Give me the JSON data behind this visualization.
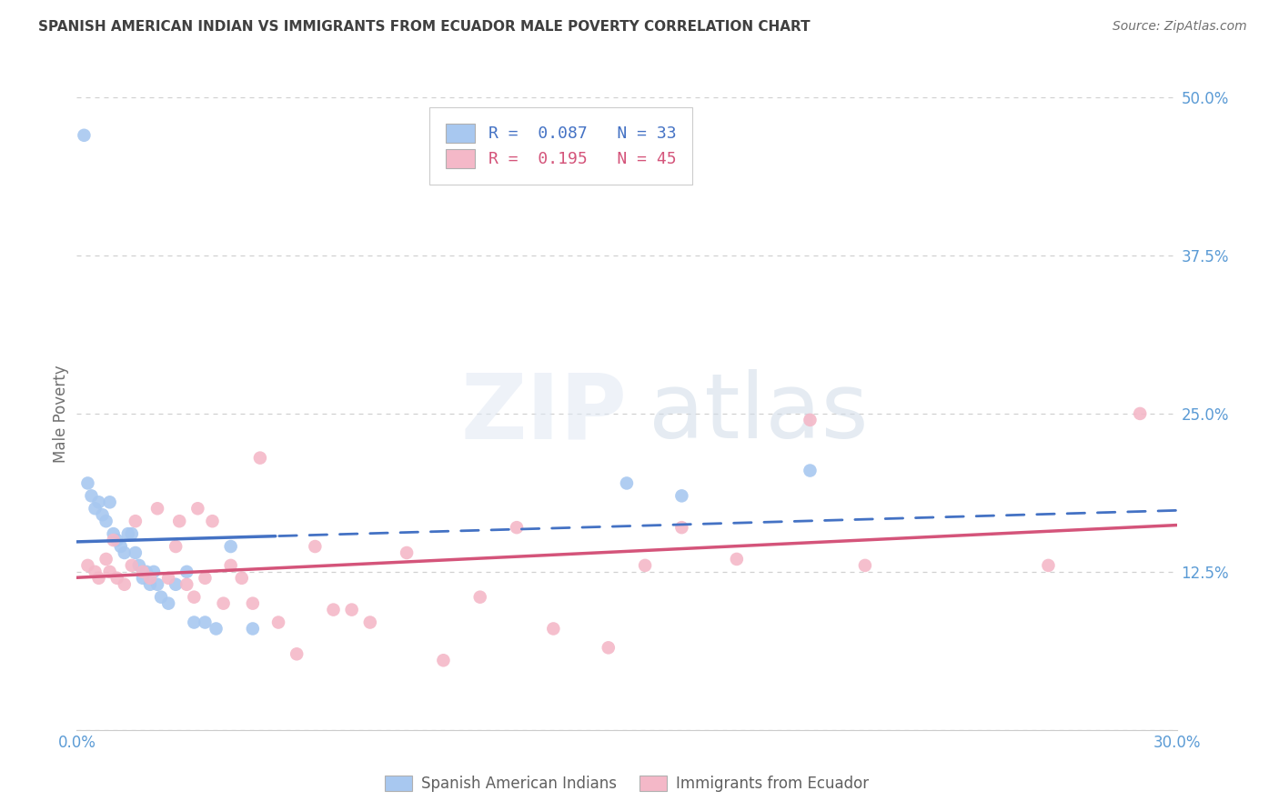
{
  "title": "SPANISH AMERICAN INDIAN VS IMMIGRANTS FROM ECUADOR MALE POVERTY CORRELATION CHART",
  "source": "Source: ZipAtlas.com",
  "ylabel_label": "Male Poverty",
  "xlim": [
    0.0,
    0.3
  ],
  "ylim": [
    0.0,
    0.5
  ],
  "ytick_positions": [
    0.125,
    0.25,
    0.375,
    0.5
  ],
  "ytick_labels": [
    "12.5%",
    "25.0%",
    "37.5%",
    "50.0%"
  ],
  "xtick_positions": [
    0.0,
    0.05,
    0.1,
    0.15,
    0.2,
    0.25,
    0.3
  ],
  "xtick_labels": [
    "0.0%",
    "",
    "",
    "",
    "",
    "",
    "30.0%"
  ],
  "legend_line1": "R =  0.087   N = 33",
  "legend_line2": "R =  0.195   N = 45",
  "series1_label": "Spanish American Indians",
  "series2_label": "Immigrants from Ecuador",
  "series1_color": "#a8c8f0",
  "series2_color": "#f4b8c8",
  "trendline1_color": "#4472c4",
  "trendline2_color": "#d4547a",
  "axis_color": "#5b9bd5",
  "background_color": "#ffffff",
  "grid_color": "#d0d0d0",
  "title_color": "#404040",
  "source_color": "#707070",
  "ylabel_color": "#707070",
  "trendline1_solid_end": 0.055,
  "blue_x": [
    0.002,
    0.003,
    0.004,
    0.005,
    0.006,
    0.007,
    0.008,
    0.009,
    0.01,
    0.011,
    0.012,
    0.013,
    0.014,
    0.015,
    0.016,
    0.017,
    0.018,
    0.019,
    0.02,
    0.021,
    0.022,
    0.023,
    0.025,
    0.027,
    0.03,
    0.032,
    0.035,
    0.038,
    0.042,
    0.048,
    0.15,
    0.165,
    0.2
  ],
  "blue_y": [
    0.47,
    0.195,
    0.185,
    0.175,
    0.18,
    0.17,
    0.165,
    0.18,
    0.155,
    0.15,
    0.145,
    0.14,
    0.155,
    0.155,
    0.14,
    0.13,
    0.12,
    0.125,
    0.115,
    0.125,
    0.115,
    0.105,
    0.1,
    0.115,
    0.125,
    0.085,
    0.085,
    0.08,
    0.145,
    0.08,
    0.195,
    0.185,
    0.205
  ],
  "pink_x": [
    0.003,
    0.005,
    0.006,
    0.008,
    0.009,
    0.01,
    0.011,
    0.013,
    0.015,
    0.016,
    0.018,
    0.02,
    0.022,
    0.025,
    0.027,
    0.028,
    0.03,
    0.032,
    0.033,
    0.035,
    0.037,
    0.04,
    0.042,
    0.045,
    0.048,
    0.05,
    0.055,
    0.06,
    0.065,
    0.07,
    0.075,
    0.08,
    0.09,
    0.1,
    0.11,
    0.12,
    0.13,
    0.145,
    0.155,
    0.165,
    0.18,
    0.2,
    0.215,
    0.265,
    0.29
  ],
  "pink_y": [
    0.13,
    0.125,
    0.12,
    0.135,
    0.125,
    0.15,
    0.12,
    0.115,
    0.13,
    0.165,
    0.125,
    0.12,
    0.175,
    0.12,
    0.145,
    0.165,
    0.115,
    0.105,
    0.175,
    0.12,
    0.165,
    0.1,
    0.13,
    0.12,
    0.1,
    0.215,
    0.085,
    0.06,
    0.145,
    0.095,
    0.095,
    0.085,
    0.14,
    0.055,
    0.105,
    0.16,
    0.08,
    0.065,
    0.13,
    0.16,
    0.135,
    0.245,
    0.13,
    0.13,
    0.25
  ]
}
